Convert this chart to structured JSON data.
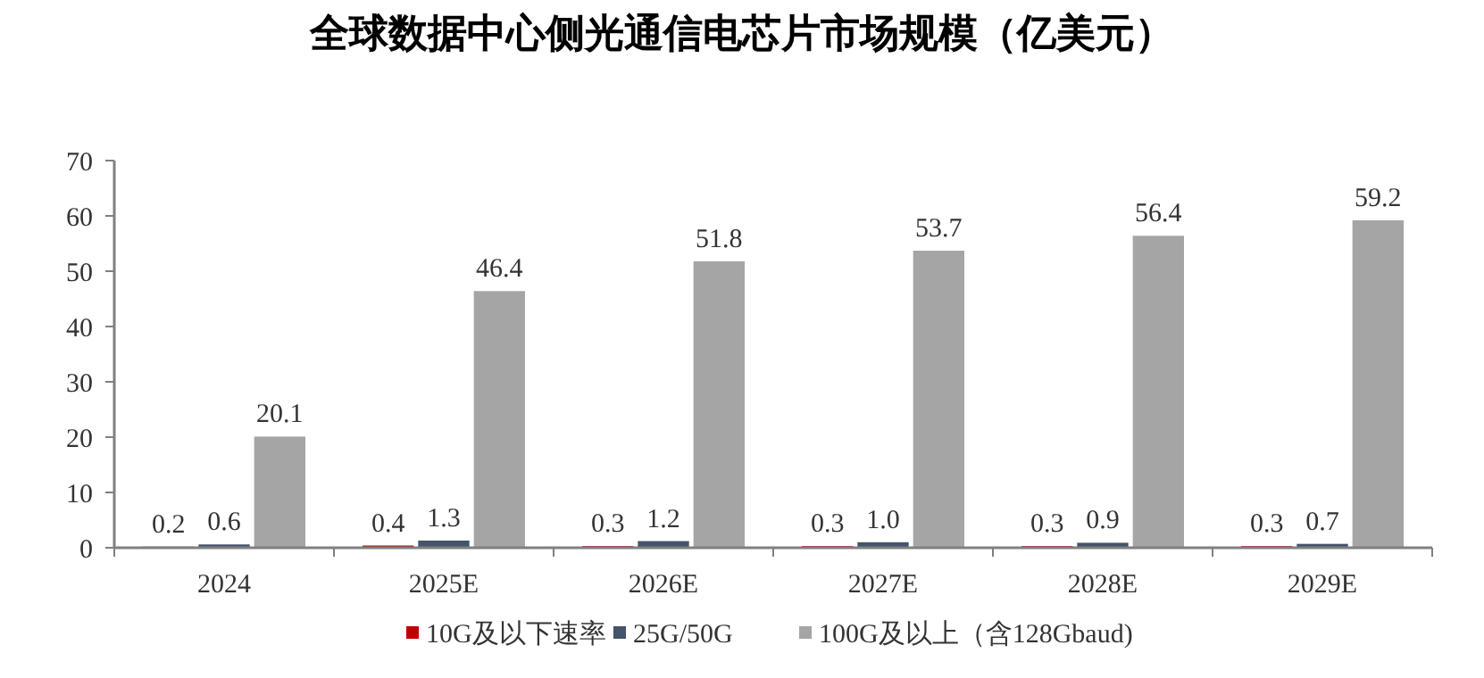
{
  "chart_data": {
    "type": "bar",
    "title": "全球数据中心侧光通信电芯片市场规模（亿美元）",
    "categories": [
      "2024",
      "2025E",
      "2026E",
      "2027E",
      "2028E",
      "2029E"
    ],
    "series": [
      {
        "name": "10G及以下速率",
        "color": "#c00000",
        "values": [
          0.2,
          0.4,
          0.3,
          0.3,
          0.3,
          0.3
        ],
        "value_labels": [
          "0.2",
          "0.4",
          "0.3",
          "0.3",
          "0.3",
          "0.3"
        ]
      },
      {
        "name": "25G/50G",
        "color": "#44546a",
        "values": [
          0.6,
          1.3,
          1.2,
          1.0,
          0.9,
          0.7
        ],
        "value_labels": [
          "0.6",
          "1.3",
          "1.2",
          "1.0",
          "0.9",
          "0.7"
        ]
      },
      {
        "name": "100G及以上（含128Gbaud)",
        "color": "#a5a5a5",
        "values": [
          20.1,
          46.4,
          51.8,
          53.7,
          56.4,
          59.2
        ],
        "value_labels": [
          "20.1",
          "46.4",
          "51.8",
          "53.7",
          "56.4",
          "59.2"
        ]
      }
    ],
    "ylim": [
      0,
      70
    ],
    "yticks": [
      0,
      10,
      20,
      30,
      40,
      50,
      60,
      70
    ],
    "grid": false,
    "legend": "bottom"
  }
}
